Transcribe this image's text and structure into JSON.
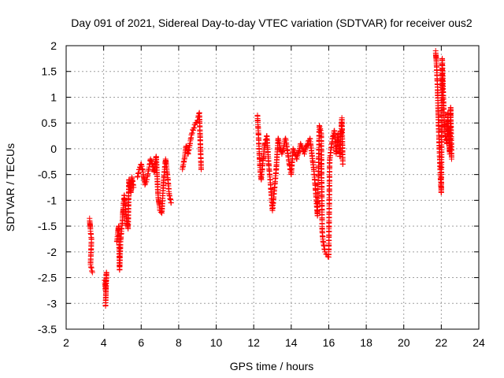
{
  "chart_data": {
    "type": "scatter",
    "title": "Day 091 of 2021, Sidereal Day-to-day VTEC variation (SDTVAR) for receiver ous2",
    "xlabel": "GPS time / hours",
    "ylabel": "SDTVAR / TECUs",
    "xlim": [
      2,
      24
    ],
    "ylim": [
      -3.5,
      2
    ],
    "xticks": [
      "2",
      "4",
      "6",
      "8",
      "10",
      "12",
      "14",
      "16",
      "18",
      "20",
      "22",
      "24"
    ],
    "yticks": [
      "-3.5",
      "-3",
      "-2.5",
      "-2",
      "-1.5",
      "-1",
      "-0.5",
      "0",
      "0.5",
      "1",
      "1.5",
      "2"
    ],
    "grid": true,
    "marker": "plus",
    "color": "#ff0000",
    "series": [
      {
        "name": "ous2",
        "segments": [
          [
            [
              3.25,
              -1.35
            ],
            [
              3.3,
              -1.6
            ],
            [
              3.35,
              -1.75
            ],
            [
              3.3,
              -2.25
            ],
            [
              3.4,
              -2.4
            ]
          ],
          [
            [
              4.05,
              -2.55
            ],
            [
              4.1,
              -2.75
            ],
            [
              4.15,
              -2.4
            ],
            [
              4.1,
              -3.05
            ]
          ],
          [
            [
              4.7,
              -1.8
            ],
            [
              4.8,
              -1.5
            ],
            [
              4.85,
              -2.35
            ],
            [
              4.9,
              -1.8
            ],
            [
              5.0,
              -1.4
            ],
            [
              5.05,
              -1.1
            ],
            [
              5.1,
              -0.9
            ],
            [
              5.2,
              -1.3
            ],
            [
              5.3,
              -1.55
            ],
            [
              5.35,
              -0.6
            ],
            [
              5.45,
              -0.85
            ],
            [
              5.5,
              -0.55
            ],
            [
              5.6,
              -0.75
            ]
          ],
          [
            [
              5.8,
              -0.55
            ],
            [
              5.9,
              -0.4
            ],
            [
              6.0,
              -0.3
            ],
            [
              6.1,
              -0.45
            ],
            [
              6.2,
              -0.7
            ],
            [
              6.3,
              -0.6
            ],
            [
              6.4,
              -0.4
            ],
            [
              6.5,
              -0.2
            ],
            [
              6.6,
              -0.3
            ],
            [
              6.7,
              -0.45
            ],
            [
              6.8,
              -0.15
            ],
            [
              6.9,
              -0.9
            ],
            [
              7.0,
              -1.2
            ],
            [
              7.1,
              -1.25
            ],
            [
              7.2,
              -0.6
            ],
            [
              7.3,
              -0.2
            ],
            [
              7.4,
              -0.5
            ],
            [
              7.5,
              -0.9
            ],
            [
              7.6,
              -1.05
            ]
          ],
          [
            [
              8.2,
              -0.4
            ],
            [
              8.3,
              -0.2
            ],
            [
              8.4,
              0.05
            ],
            [
              8.5,
              -0.1
            ],
            [
              8.6,
              0.1
            ],
            [
              8.7,
              0.3
            ],
            [
              8.8,
              0.4
            ],
            [
              8.9,
              0.5
            ],
            [
              9.0,
              0.55
            ],
            [
              9.1,
              0.7
            ],
            [
              9.2,
              -0.4
            ]
          ],
          [
            [
              12.2,
              0.65
            ],
            [
              12.25,
              0.3
            ],
            [
              12.3,
              -0.1
            ],
            [
              12.35,
              -0.45
            ],
            [
              12.4,
              -0.6
            ],
            [
              12.5,
              -0.2
            ],
            [
              12.6,
              0.1
            ],
            [
              12.7,
              0.25
            ],
            [
              12.8,
              -0.3
            ],
            [
              12.9,
              -0.7
            ],
            [
              13.0,
              -1.2
            ],
            [
              13.1,
              -0.8
            ],
            [
              13.2,
              -0.4
            ],
            [
              13.3,
              0.2
            ],
            [
              13.5,
              -0.1
            ],
            [
              13.7,
              0.2
            ],
            [
              13.9,
              -0.3
            ],
            [
              14.0,
              -0.5
            ],
            [
              14.1,
              0.0
            ],
            [
              14.3,
              -0.2
            ],
            [
              14.5,
              0.1
            ],
            [
              14.7,
              -0.1
            ],
            [
              14.9,
              0.15
            ],
            [
              15.0,
              0.2
            ],
            [
              15.2,
              -0.4
            ],
            [
              15.3,
              -0.8
            ],
            [
              15.4,
              -1.3
            ],
            [
              15.5,
              0.45
            ],
            [
              15.6,
              0.3
            ],
            [
              15.65,
              -1.6
            ],
            [
              15.7,
              -1.8
            ],
            [
              15.8,
              -2.0
            ],
            [
              15.9,
              -2.05
            ],
            [
              16.0,
              -2.1
            ],
            [
              16.05,
              -0.2
            ],
            [
              16.2,
              0.2
            ],
            [
              16.3,
              0.35
            ],
            [
              16.4,
              -0.1
            ],
            [
              16.5,
              0.3
            ],
            [
              16.6,
              -0.15
            ],
            [
              16.7,
              0.6
            ],
            [
              16.75,
              -0.3
            ]
          ],
          [
            [
              21.7,
              1.9
            ],
            [
              21.75,
              1.6
            ],
            [
              21.8,
              1.2
            ],
            [
              21.85,
              0.5
            ],
            [
              21.9,
              0.0
            ],
            [
              21.95,
              -0.5
            ],
            [
              22.0,
              -0.85
            ],
            [
              22.05,
              1.75
            ],
            [
              22.1,
              1.1
            ],
            [
              22.15,
              0.6
            ],
            [
              22.2,
              0.3
            ],
            [
              22.3,
              0.1
            ],
            [
              22.35,
              0.7
            ],
            [
              22.4,
              0.2
            ],
            [
              22.45,
              -0.1
            ],
            [
              22.5,
              0.8
            ],
            [
              22.55,
              -0.2
            ]
          ]
        ]
      }
    ]
  }
}
